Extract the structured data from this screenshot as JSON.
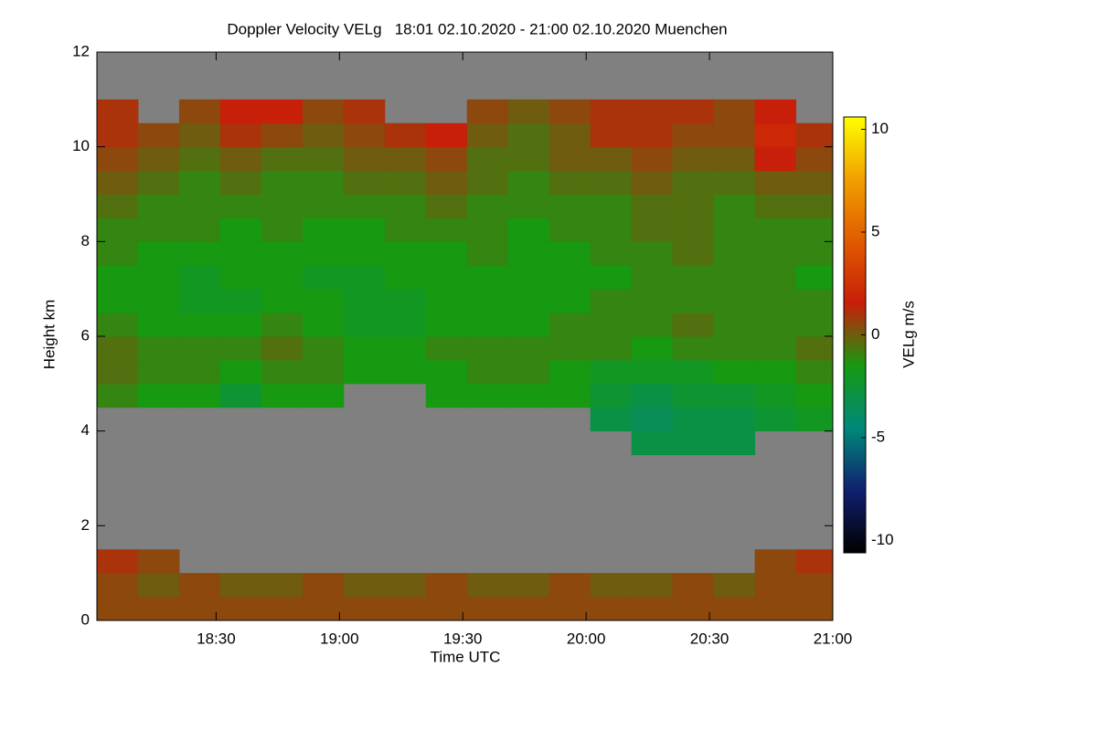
{
  "chart_data": {
    "type": "heatmap",
    "title": "Doppler Velocity VELg   18:01 02.10.2020 - 21:00 02.10.2020 Muenchen",
    "x_label": "Time UTC",
    "y_label": "Height km",
    "colorbar_label": "VELg m/s",
    "background_color": "#808080",
    "colormap": [
      "#000000",
      "#102070",
      "#00887a",
      "#169a12",
      "#c81e0a",
      "#e05a00",
      "#f0a000",
      "#ffff00"
    ],
    "xlim": [
      1081,
      1260
    ],
    "xticks": [
      {
        "value": 1110,
        "label": "18:30"
      },
      {
        "value": 1140,
        "label": "19:00"
      },
      {
        "value": 1170,
        "label": "19:30"
      },
      {
        "value": 1200,
        "label": "20:00"
      },
      {
        "value": 1230,
        "label": "20:30"
      },
      {
        "value": 1260,
        "label": "21:00"
      }
    ],
    "ylim": [
      0,
      12
    ],
    "yticks": [
      0,
      2,
      4,
      6,
      8,
      10,
      12
    ],
    "clim": [
      -10.6,
      10.6
    ],
    "cticks": [
      -10,
      -5,
      0,
      5,
      10
    ],
    "x_edges": [
      1081,
      1091,
      1101,
      1111,
      1121,
      1131,
      1141,
      1151,
      1161,
      1171,
      1181,
      1191,
      1201,
      1211,
      1221,
      1231,
      1241,
      1251,
      1260
    ],
    "y_edges": [
      0,
      0.5,
      1,
      1.5,
      2,
      2.5,
      3,
      3.5,
      4,
      4.5,
      5,
      5.5,
      6,
      6.5,
      7,
      7.5,
      8,
      8.5,
      9,
      9.5,
      10,
      10.5,
      11,
      11.5,
      12
    ],
    "values": [
      [
        0.5,
        0.5,
        0.5,
        0.5,
        0.5,
        0.5,
        0.5,
        0.5,
        0.5,
        0.5,
        0.5,
        0.5,
        0.5,
        0.5,
        0.5,
        0.5,
        0.5,
        0.5
      ],
      [
        0.5,
        0,
        0.5,
        0,
        0,
        0.5,
        0,
        0,
        0.5,
        0,
        0,
        0.5,
        0,
        0,
        0.5,
        0,
        0.5,
        0.5
      ],
      [
        1,
        0.5,
        null,
        null,
        null,
        null,
        null,
        null,
        null,
        null,
        null,
        null,
        null,
        null,
        null,
        null,
        0.5,
        1
      ],
      [
        null,
        null,
        null,
        null,
        null,
        null,
        null,
        null,
        null,
        null,
        null,
        null,
        null,
        null,
        null,
        null,
        null,
        null
      ],
      [
        null,
        null,
        null,
        null,
        null,
        null,
        null,
        null,
        null,
        null,
        null,
        null,
        null,
        null,
        null,
        null,
        null,
        null
      ],
      [
        null,
        null,
        null,
        null,
        null,
        null,
        null,
        null,
        null,
        null,
        null,
        null,
        null,
        null,
        null,
        null,
        null,
        null
      ],
      [
        null,
        null,
        null,
        null,
        null,
        null,
        null,
        null,
        null,
        null,
        null,
        null,
        null,
        null,
        null,
        null,
        null,
        null
      ],
      [
        null,
        null,
        null,
        null,
        null,
        null,
        null,
        null,
        null,
        null,
        null,
        null,
        null,
        -3,
        -3,
        -3,
        null,
        null
      ],
      [
        null,
        null,
        null,
        null,
        null,
        null,
        null,
        null,
        null,
        null,
        null,
        null,
        -3,
        -3.5,
        -3,
        -3,
        -2.5,
        -2
      ],
      [
        -1,
        -1.5,
        -1.5,
        -2.5,
        -1.5,
        -1.5,
        null,
        null,
        -1.5,
        -1.5,
        -1.5,
        -1.5,
        -2.5,
        -3,
        -2.5,
        -2.5,
        -2,
        -1.5
      ],
      [
        -0.5,
        -1,
        -1,
        -1.5,
        -1,
        -1,
        -1.5,
        -1.5,
        -1.5,
        -1,
        -1,
        -1.5,
        -2,
        -2,
        -2,
        -1.5,
        -1.5,
        -1
      ],
      [
        -0.5,
        -1,
        -1,
        -1,
        -0.5,
        -1,
        -1.5,
        -1.5,
        -1,
        -1,
        -1,
        -1,
        -1,
        -1.5,
        -1,
        -1,
        -1,
        -0.5
      ],
      [
        -1,
        -1.5,
        -1.5,
        -1.5,
        -1,
        -1.5,
        -2,
        -2,
        -1.5,
        -1.5,
        -1.5,
        -1,
        -1,
        -1,
        -0.5,
        -1,
        -1,
        -1
      ],
      [
        -1.5,
        -1.5,
        -2,
        -2,
        -1.5,
        -1.5,
        -2,
        -2,
        -1.5,
        -1.5,
        -1.5,
        -1.5,
        -1,
        -1,
        -1,
        -1,
        -1,
        -1
      ],
      [
        -1.5,
        -1.5,
        -2,
        -1.5,
        -1.5,
        -2,
        -2,
        -1.5,
        -1.5,
        -1.5,
        -1.5,
        -1.5,
        -1.5,
        -1,
        -1,
        -1,
        -1,
        -1.5
      ],
      [
        -1,
        -1.5,
        -1.5,
        -1.5,
        -1.5,
        -1.5,
        -1.5,
        -1.5,
        -1.5,
        -1,
        -1.5,
        -1.5,
        -1,
        -1,
        -0.5,
        -1,
        -1,
        -1
      ],
      [
        -1,
        -1,
        -1,
        -1.5,
        -1,
        -1.5,
        -1.5,
        -1,
        -1,
        -1,
        -1.5,
        -1,
        -1,
        -0.5,
        -0.5,
        -1,
        -1,
        -1
      ],
      [
        -0.5,
        -1,
        -1,
        -1,
        -1,
        -1,
        -1,
        -1,
        -0.5,
        -1,
        -1,
        -1,
        -1,
        -0.5,
        -0.5,
        -1,
        -0.5,
        -0.5
      ],
      [
        0,
        -0.5,
        -1,
        -0.5,
        -1,
        -1,
        -0.5,
        -0.5,
        0,
        -0.5,
        -1,
        -0.5,
        -0.5,
        0,
        -0.5,
        -0.5,
        0,
        0
      ],
      [
        0.5,
        0,
        -0.5,
        0,
        -0.5,
        -0.5,
        0,
        0,
        0.5,
        -0.5,
        -0.5,
        0,
        0,
        0.5,
        0,
        0,
        1.5,
        0.5
      ],
      [
        1,
        0.5,
        0,
        1,
        0.5,
        0,
        0.5,
        1,
        1.5,
        0,
        -0.5,
        0,
        1,
        1,
        0.5,
        0.5,
        2,
        1
      ],
      [
        1,
        null,
        0.5,
        1.5,
        1.5,
        0.5,
        1,
        null,
        null,
        0.5,
        0,
        0.5,
        1,
        1,
        1,
        0.5,
        1.5,
        null
      ],
      [
        null,
        null,
        null,
        null,
        null,
        null,
        null,
        null,
        null,
        null,
        null,
        null,
        null,
        null,
        null,
        null,
        null,
        null
      ],
      [
        null,
        null,
        null,
        null,
        null,
        null,
        null,
        null,
        null,
        null,
        null,
        null,
        null,
        null,
        null,
        null,
        null,
        null
      ]
    ]
  }
}
